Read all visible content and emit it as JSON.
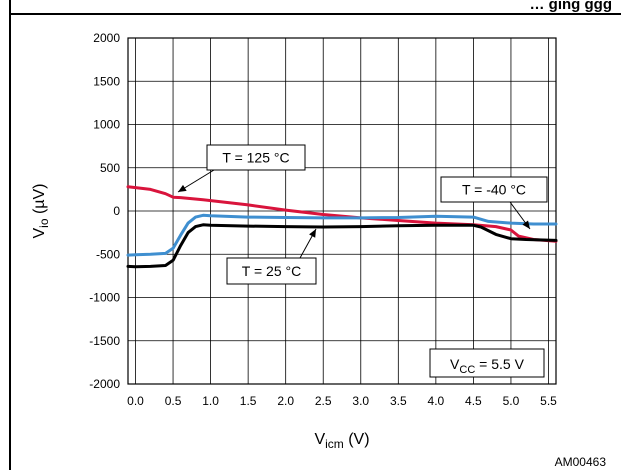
{
  "header_text": "… ging   ggg",
  "chart_data": {
    "type": "line",
    "xlabel_main": "V",
    "xlabel_sub": "icm",
    "xlabel_unit": " (V)",
    "ylabel_main": "V",
    "ylabel_sub": "io",
    "ylabel_unit": " (µV)",
    "xlim": [
      -0.1,
      5.6
    ],
    "ylim": [
      -2000,
      2000
    ],
    "x_ticks": [
      0.0,
      0.5,
      1.0,
      1.5,
      2.0,
      2.5,
      3.0,
      3.5,
      4.0,
      4.5,
      5.0,
      5.5
    ],
    "x_tick_labels": [
      "0.0",
      "0.5",
      "1.0",
      "1.5",
      "2.0",
      "2.5",
      "3.0",
      "3.5",
      "4.0",
      "4.5",
      "5.0",
      "5.5"
    ],
    "y_ticks": [
      2000,
      1500,
      1000,
      500,
      0,
      -500,
      -1000,
      -1500,
      -2000
    ],
    "y_tick_labels": [
      "2000",
      "1500",
      "1000",
      "500",
      "0",
      "-500",
      "-1000",
      "-1500",
      "-2000"
    ],
    "grid": true,
    "series": [
      {
        "name": "T = 125 °C",
        "color": "#d9143c",
        "x": [
          -0.1,
          0.0,
          0.2,
          0.4,
          0.5,
          0.6,
          0.9,
          1.5,
          2.0,
          2.5,
          3.0,
          3.5,
          4.0,
          4.5,
          4.8,
          5.0,
          5.1,
          5.3,
          5.6
        ],
        "y": [
          280,
          270,
          250,
          200,
          160,
          155,
          130,
          70,
          10,
          -40,
          -80,
          -110,
          -140,
          -160,
          -180,
          -220,
          -290,
          -330,
          -350
        ]
      },
      {
        "name": "T = 25 °C",
        "color": "#000000",
        "x": [
          -0.1,
          0.0,
          0.2,
          0.4,
          0.5,
          0.6,
          0.7,
          0.8,
          0.9,
          1.0,
          1.5,
          2.0,
          2.5,
          3.0,
          3.5,
          4.0,
          4.5,
          4.6,
          4.8,
          5.0,
          5.2,
          5.6
        ],
        "y": [
          -640,
          -645,
          -640,
          -630,
          -570,
          -400,
          -250,
          -180,
          -160,
          -165,
          -175,
          -180,
          -185,
          -180,
          -170,
          -165,
          -165,
          -185,
          -270,
          -320,
          -330,
          -340
        ]
      },
      {
        "name": "T = -40 °C",
        "color": "#3f8fd0",
        "x": [
          -0.1,
          0.0,
          0.2,
          0.4,
          0.5,
          0.6,
          0.7,
          0.8,
          0.9,
          1.0,
          1.5,
          2.0,
          2.5,
          3.0,
          3.5,
          4.0,
          4.5,
          4.7,
          5.0,
          5.3,
          5.6
        ],
        "y": [
          -510,
          -505,
          -500,
          -490,
          -430,
          -280,
          -140,
          -70,
          -50,
          -55,
          -70,
          -75,
          -80,
          -80,
          -75,
          -60,
          -70,
          -120,
          -140,
          -150,
          -150
        ]
      }
    ],
    "annotations": [
      {
        "text": "T = 125 °C",
        "series": "T = 125 °C"
      },
      {
        "text": "T = 25 °C",
        "series": "T = 25 °C"
      },
      {
        "text": "T = -40 °C",
        "series": "T = -40 °C"
      }
    ],
    "condition_main": "V",
    "condition_sub": "CC",
    "condition_rest": " = 5.5 V"
  },
  "figure_ref": "AM00463"
}
